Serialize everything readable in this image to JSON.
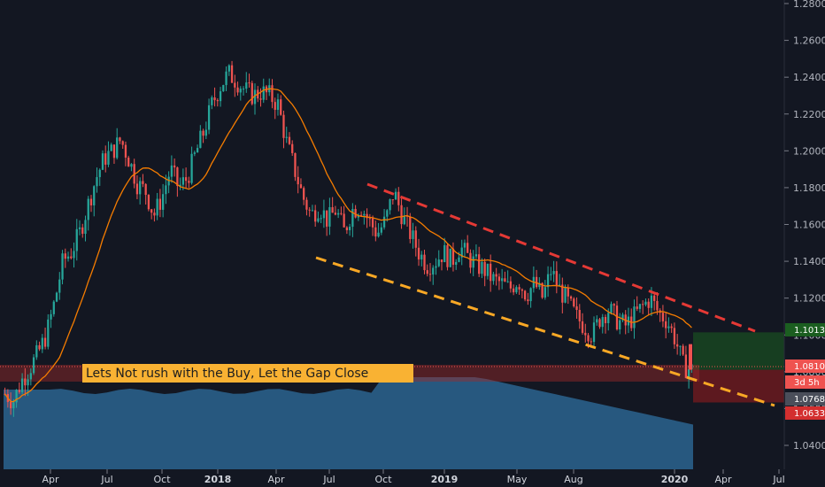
{
  "chart_data": {
    "type": "candlestick",
    "y_axis": {
      "position": "right",
      "scale": "linear",
      "ylim": [
        1.03,
        1.28
      ],
      "ticks": [
        "1.04000",
        "1.06000",
        "1.08000",
        "1.10000",
        "1.12000",
        "1.14000",
        "1.16000",
        "1.18000",
        "1.20000",
        "1.22000",
        "1.24000",
        "1.26000",
        "1.28000"
      ]
    },
    "x_axis": {
      "ticks": [
        "Apr",
        "Jul",
        "Oct",
        "2018",
        "Apr",
        "Jul",
        "Oct",
        "2019",
        "May",
        "Aug",
        "2020",
        "Apr",
        "Jul"
      ],
      "bold_ticks": [
        "2018",
        "2019",
        "2020"
      ]
    },
    "grid": false,
    "colors": {
      "background": "#131722",
      "up": "#26a69a",
      "down": "#ef5350",
      "ma_line": "#f57c00",
      "volume": "#2f6f9f",
      "upper_trendline": "#e53935",
      "lower_trendline": "#f9a825",
      "annotation_bg": "#f9b233",
      "green_zone": "#1b5e20",
      "red_zone": "#b71c1c"
    },
    "series": [
      {
        "kind": "price",
        "description": "EURUSD-style daily candles, approximate closing path",
        "closes": [
          1.068,
          1.064,
          1.075,
          1.082,
          1.09,
          1.1,
          1.118,
          1.14,
          1.145,
          1.155,
          1.17,
          1.185,
          1.196,
          1.2,
          1.206,
          1.195,
          1.182,
          1.178,
          1.165,
          1.175,
          1.19,
          1.18,
          1.185,
          1.198,
          1.21,
          1.225,
          1.235,
          1.242,
          1.238,
          1.233,
          1.23,
          1.232,
          1.23,
          1.225,
          1.205,
          1.19,
          1.175,
          1.165,
          1.17,
          1.162,
          1.168,
          1.156,
          1.168,
          1.17,
          1.162,
          1.155,
          1.162,
          1.178,
          1.165,
          1.155,
          1.145,
          1.138,
          1.14,
          1.145,
          1.14,
          1.148,
          1.142,
          1.138,
          1.135,
          1.13,
          1.128,
          1.125,
          1.13,
          1.122,
          1.128,
          1.12,
          1.135,
          1.125,
          1.118,
          1.11,
          1.105,
          1.1,
          1.11,
          1.114,
          1.108,
          1.105,
          1.11,
          1.115,
          1.12,
          1.112,
          1.108,
          1.098,
          1.083,
          1.081
        ]
      }
    ],
    "trendlines": [
      {
        "name": "upper",
        "style": "dashed",
        "from": [
          "2018-09",
          1.18
        ],
        "to": [
          "2020-05",
          1.1
        ]
      },
      {
        "name": "lower",
        "style": "dashed",
        "from": [
          "2018-06",
          1.145
        ],
        "to": [
          "2020-06",
          1.063
        ]
      }
    ],
    "zones": [
      {
        "kind": "target",
        "from_price": 1.0811,
        "to_price": 1.1014
      },
      {
        "kind": "stop",
        "from_price": 1.0633,
        "to_price": 1.0811
      }
    ],
    "price_labels": [
      {
        "text": "1.10139",
        "value": 1.10139,
        "bg": "#1b5e20"
      },
      {
        "text": "1.08107",
        "value": 1.08107,
        "bg": "#ef5350"
      },
      {
        "text": "3d 5h",
        "value": 1.0745,
        "bg": "#ef5350"
      },
      {
        "text": "1.07689",
        "value": 1.07689,
        "bg": "#4a4e5a"
      },
      {
        "text": "1.06333",
        "value": 1.06333,
        "bg": "#d32f2f"
      }
    ],
    "annotation": "Lets Not rush with the Buy, Let the Gap Close"
  }
}
